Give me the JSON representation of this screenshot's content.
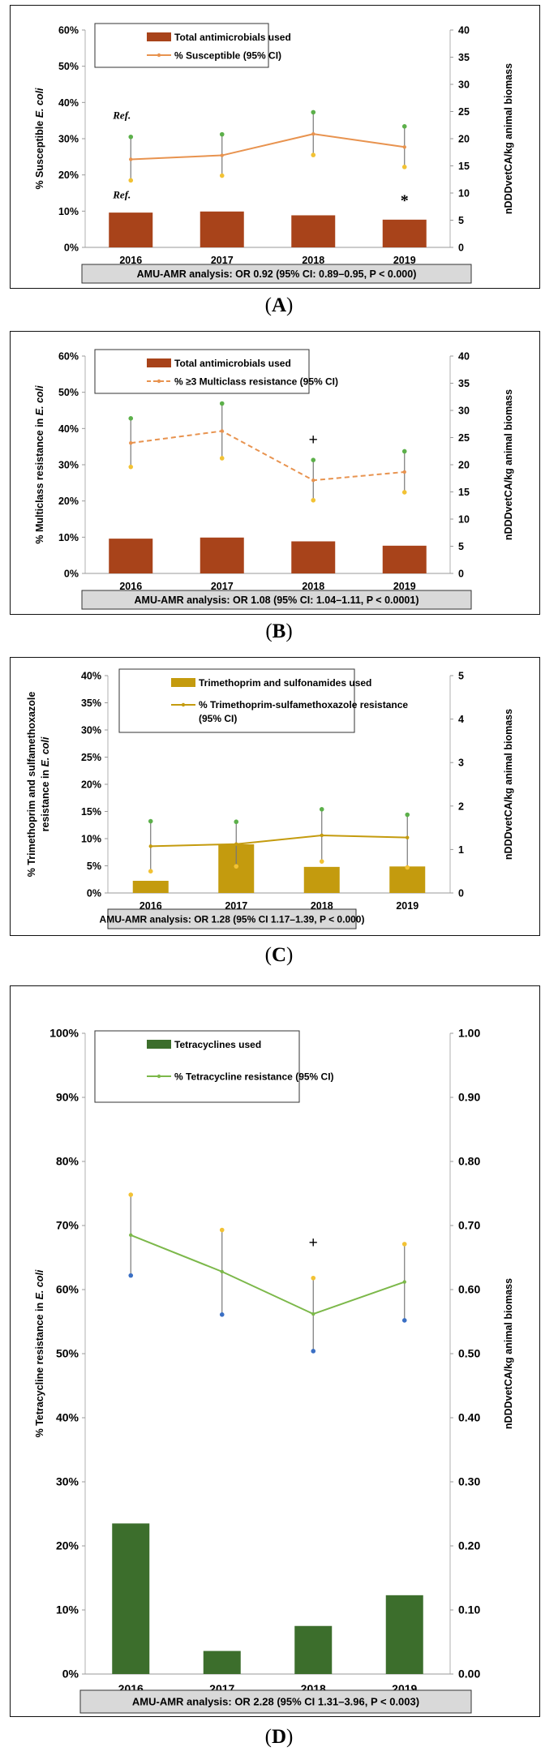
{
  "panels": [
    {
      "id": "A",
      "label": "A",
      "chart_data": {
        "type": "bar+line",
        "categories": [
          "2016",
          "2017",
          "2018",
          "2019"
        ],
        "y_left": {
          "label": "% Susceptible E. coli",
          "italic_part": "E. coli",
          "ticks": [
            "0%",
            "10%",
            "20%",
            "30%",
            "40%",
            "50%",
            "60%"
          ],
          "range": [
            0,
            60
          ]
        },
        "y_right": {
          "label": "nDDDvetCA/kg animal biomass",
          "ticks": [
            "0",
            "5",
            "10",
            "15",
            "20",
            "25",
            "30",
            "35",
            "40"
          ],
          "range": [
            0,
            40
          ]
        },
        "bars": {
          "name": "Total antimicrobials used",
          "color": "#a8431a",
          "values": [
            6.4,
            6.6,
            5.9,
            5.1
          ]
        },
        "line": {
          "name": "% Susceptible  (95% CI)",
          "color": "#e8934f",
          "dash": "solid",
          "values": [
            24.3,
            25.4,
            31.3,
            27.7
          ],
          "ci_upper": [
            30.5,
            31.2,
            37.3,
            33.4
          ],
          "ci_lower": [
            18.5,
            19.8,
            25.5,
            22.2
          ]
        },
        "annotations": [
          {
            "text": "Ref.",
            "category": "2016",
            "level": 35.5
          },
          {
            "text": "Ref.",
            "category": "2016",
            "level": 13.5
          },
          {
            "text": "*",
            "category": "2019",
            "level": 11.5
          }
        ],
        "footer": "AMU-AMR analysis: OR 0.92 (95% CI: 0.89–0.95, P < 0.000)"
      }
    },
    {
      "id": "B",
      "label": "B",
      "chart_data": {
        "type": "bar+line",
        "categories": [
          "2016",
          "2017",
          "2018",
          "2019"
        ],
        "y_left": {
          "label": "% Multiclass resistance in E. coli",
          "italic_part": "E. coli",
          "ticks": [
            "0%",
            "10%",
            "20%",
            "30%",
            "40%",
            "50%",
            "60%"
          ],
          "range": [
            0,
            60
          ]
        },
        "y_right": {
          "label": "nDDDvetCA/kg animal biomass",
          "ticks": [
            "0",
            "5",
            "10",
            "15",
            "20",
            "25",
            "30",
            "35",
            "40"
          ],
          "range": [
            0,
            40
          ]
        },
        "bars": {
          "name": "Total antimicrobials used",
          "color": "#a8431a",
          "values": [
            6.4,
            6.6,
            5.9,
            5.1
          ]
        },
        "line": {
          "name": "% ≥3 Multiclass resistance (95% CI)",
          "color": "#e8934f",
          "dash": "dashed",
          "values": [
            36.0,
            39.3,
            25.7,
            28.0
          ],
          "ci_upper": [
            42.8,
            46.9,
            31.3,
            33.7
          ],
          "ci_lower": [
            29.4,
            31.8,
            20.2,
            22.4
          ]
        },
        "annotations": [
          {
            "text": "+",
            "category": "2018",
            "level": 35.5
          }
        ],
        "footer": "AMU-AMR analysis: OR 1.08 (95% CI: 1.04–1.11, P < 0.0001)"
      }
    },
    {
      "id": "C",
      "label": "C",
      "chart_data": {
        "type": "bar+line",
        "categories": [
          "2016",
          "2017",
          "2018",
          "2019"
        ],
        "y_left": {
          "label_lines": [
            "% Trimethoprim and sulfamethoxazole",
            "resistance in E. coli"
          ],
          "italic_part": "E. coli",
          "ticks": [
            "0%",
            "5%",
            "10%",
            "15%",
            "20%",
            "25%",
            "30%",
            "35%",
            "40%"
          ],
          "range": [
            0,
            40
          ]
        },
        "y_right": {
          "label": "nDDDvetCA/kg animal biomass",
          "ticks": [
            "0",
            "1",
            "2",
            "3",
            "4",
            "5"
          ],
          "range": [
            0,
            5
          ]
        },
        "bars": {
          "name": "Trimethoprim and sulfonamides used",
          "color": "#c49b0e",
          "values": [
            0.28,
            1.12,
            0.6,
            0.61
          ]
        },
        "line": {
          "name_lines": [
            "% Trimethoprim-sulfamethoxazole resistance",
            "(95% CI)"
          ],
          "color": "#c49b0e",
          "dash": "solid",
          "values": [
            8.6,
            9.0,
            10.6,
            10.2
          ],
          "ci_upper": [
            13.2,
            13.1,
            15.4,
            14.4
          ],
          "ci_lower": [
            4.0,
            4.9,
            5.8,
            4.7
          ]
        },
        "annotations": [],
        "footer": "AMU-AMR analysis: OR 1.28  (95% CI 1.17–1.39, P < 0.000)"
      }
    },
    {
      "id": "D",
      "label": "D",
      "chart_data": {
        "type": "bar+line",
        "categories": [
          "2016",
          "2017",
          "2018",
          "2019"
        ],
        "y_left": {
          "label": "% Tetracycline resistance in E. coli",
          "italic_part": "E. coli",
          "ticks": [
            "0%",
            "10%",
            "20%",
            "30%",
            "40%",
            "50%",
            "60%",
            "70%",
            "80%",
            "90%",
            "100%"
          ],
          "range": [
            0,
            100
          ]
        },
        "y_right": {
          "label": "nDDDvetCA/kg animal biomass",
          "ticks": [
            "0.00",
            "0.10",
            "0.20",
            "0.30",
            "0.40",
            "0.50",
            "0.60",
            "0.70",
            "0.80",
            "0.90",
            "1.00"
          ],
          "range": [
            0,
            1
          ]
        },
        "bars": {
          "name": "Tetracyclines used",
          "color": "#3c6e2c",
          "values": [
            0.235,
            0.036,
            0.075,
            0.123
          ]
        },
        "line": {
          "name": "% Tetracycline resistance (95% CI)",
          "color": "#7cb84a",
          "dash": "solid",
          "values": [
            68.5,
            62.8,
            56.2,
            61.2
          ],
          "ci_upper": [
            74.8,
            69.3,
            61.8,
            67.1
          ],
          "ci_lower": [
            62.2,
            56.1,
            50.4,
            55.2
          ]
        },
        "annotations": [
          {
            "text": "+",
            "category": "2018",
            "level": 66.5
          }
        ],
        "footer": "AMU-AMR analysis: OR 2.28  (95% CI 1.31–3.96, P < 0.003)"
      }
    }
  ],
  "colors": {
    "ci_upper_marker": "#5cb04a",
    "ci_lower_marker": "#f2c234",
    "ci_lower_marker_D": "#3a6fc4",
    "ci_upper_marker_D": "#f2c234",
    "footer_fill": "#d9d9d9"
  }
}
